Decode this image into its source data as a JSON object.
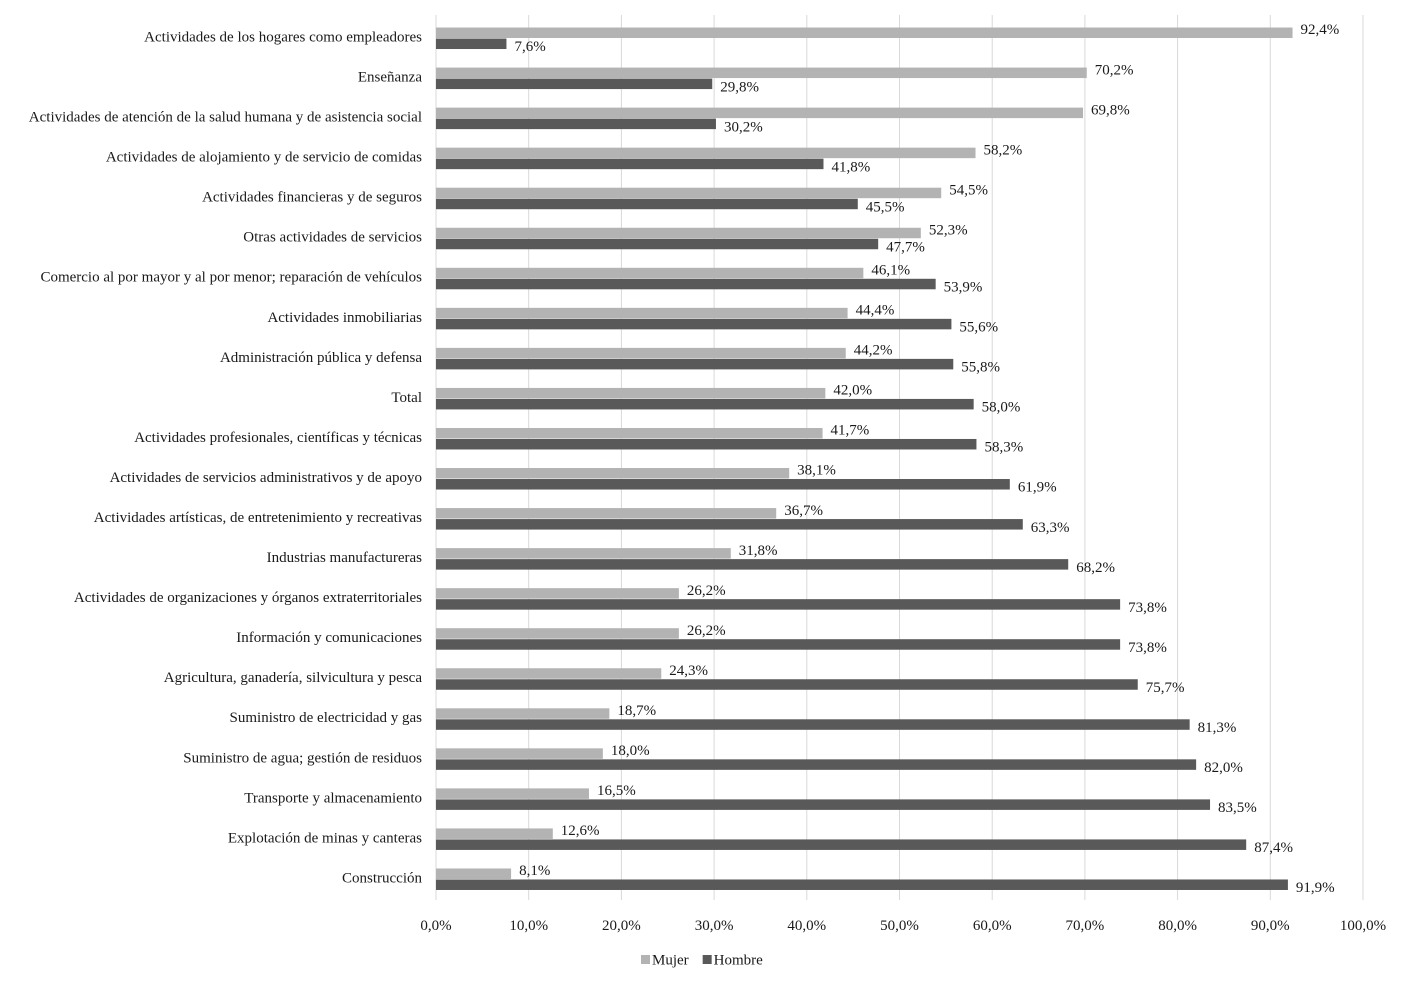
{
  "chart_data": {
    "type": "bar",
    "orientation": "horizontal",
    "title": "",
    "xlabel": "",
    "ylabel": "",
    "xlim": [
      0,
      100
    ],
    "x_ticks": [
      0,
      10,
      20,
      30,
      40,
      50,
      60,
      70,
      80,
      90,
      100
    ],
    "x_tick_labels": [
      "0,0%",
      "10,0%",
      "20,0%",
      "30,0%",
      "40,0%",
      "50,0%",
      "60,0%",
      "70,0%",
      "80,0%",
      "90,0%",
      "100,0%"
    ],
    "grid": "vertical",
    "legend_position": "bottom-center",
    "categories": [
      "Actividades de los hogares como empleadores",
      "Enseñanza",
      "Actividades de atención de la salud humana y de asistencia social",
      "Actividades de alojamiento y de servicio de comidas",
      "Actividades financieras y de seguros",
      "Otras actividades de servicios",
      "Comercio al por mayor y al por menor; reparación de vehículos",
      "Actividades inmobiliarias",
      "Administración pública y defensa",
      "Total",
      "Actividades profesionales, científicas y técnicas",
      "Actividades de servicios administrativos y de apoyo",
      "Actividades artísticas, de entretenimiento y recreativas",
      "Industrias manufactureras",
      "Actividades de organizaciones y órganos extraterritoriales",
      "Información y comunicaciones",
      "Agricultura, ganadería, silvicultura y pesca",
      "Suministro de electricidad y gas",
      "Suministro de agua; gestión de residuos",
      "Transporte y almacenamiento",
      "Explotación de minas y canteras",
      "Construcción"
    ],
    "series": [
      {
        "name": "Mujer",
        "color": "#b3b3b3",
        "values": [
          92.4,
          70.2,
          69.8,
          58.2,
          54.5,
          52.3,
          46.1,
          44.4,
          44.2,
          42.0,
          41.7,
          38.1,
          36.7,
          31.8,
          26.2,
          26.2,
          24.3,
          18.7,
          18.0,
          16.5,
          12.6,
          8.1
        ],
        "labels": [
          "92,4%",
          "70,2%",
          "69,8%",
          "58,2%",
          "54,5%",
          "52,3%",
          "46,1%",
          "44,4%",
          "44,2%",
          "42,0%",
          "41,7%",
          "38,1%",
          "36,7%",
          "31,8%",
          "26,2%",
          "26,2%",
          "24,3%",
          "18,7%",
          "18,0%",
          "16,5%",
          "12,6%",
          "8,1%"
        ]
      },
      {
        "name": "Hombre",
        "color": "#595959",
        "values": [
          7.6,
          29.8,
          30.2,
          41.8,
          45.5,
          47.7,
          53.9,
          55.6,
          55.8,
          58.0,
          58.3,
          61.9,
          63.3,
          68.2,
          73.8,
          73.8,
          75.7,
          81.3,
          82.0,
          83.5,
          87.4,
          91.9
        ],
        "labels": [
          "7,6%",
          "29,8%",
          "30,2%",
          "41,8%",
          "45,5%",
          "47,7%",
          "53,9%",
          "55,6%",
          "55,8%",
          "58,0%",
          "58,3%",
          "61,9%",
          "63,3%",
          "68,2%",
          "73,8%",
          "73,8%",
          "75,7%",
          "81,3%",
          "82,0%",
          "83,5%",
          "87,4%",
          "91,9%"
        ]
      }
    ]
  }
}
